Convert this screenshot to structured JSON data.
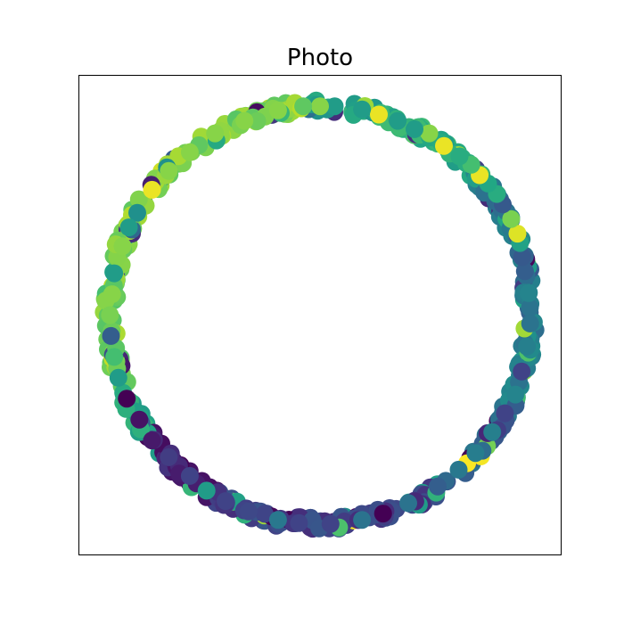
{
  "chart_data": {
    "type": "scatter",
    "title": "Photo",
    "xlabel": "",
    "ylabel": "",
    "xlim": [
      -1.15,
      1.15
    ],
    "ylim": [
      -1.15,
      1.15
    ],
    "axis_ticks": "none",
    "grid": false,
    "colormap": "viridis",
    "color_value_range": [
      0,
      1
    ],
    "radius_range": [
      0.97,
      1.03
    ],
    "bands": [
      {
        "angle_start": 0,
        "angle_end": 40,
        "color_value": 0.38
      },
      {
        "angle_start": 40,
        "angle_end": 75,
        "color_value": 0.62
      },
      {
        "angle_start": 75,
        "angle_end": 95,
        "color_value": 0.58
      },
      {
        "angle_start": 95,
        "angle_end": 165,
        "color_value": 0.82
      },
      {
        "angle_start": 165,
        "angle_end": 200,
        "color_value": 0.8
      },
      {
        "angle_start": 200,
        "angle_end": 215,
        "color_value": 0.6
      },
      {
        "angle_start": 215,
        "angle_end": 240,
        "color_value": 0.07
      },
      {
        "angle_start": 240,
        "angle_end": 305,
        "color_value": 0.2
      },
      {
        "angle_start": 305,
        "angle_end": 335,
        "color_value": 0.33
      },
      {
        "angle_start": 335,
        "angle_end": 360,
        "color_value": 0.43
      }
    ],
    "points": [
      [
        0.999,
        0.035,
        0.38
      ],
      [
        0.993,
        0.105,
        0.45
      ],
      [
        0.975,
        0.21,
        0.3
      ],
      [
        0.962,
        0.278,
        0.28
      ],
      [
        0.952,
        0.345,
        0.58
      ],
      [
        0.94,
        0.39,
        0.95
      ],
      [
        0.91,
        0.46,
        0.8
      ],
      [
        0.87,
        0.53,
        0.28
      ],
      [
        0.842,
        0.58,
        0.62
      ],
      [
        0.8,
        0.63,
        0.6
      ],
      [
        0.76,
        0.67,
        0.97
      ],
      [
        0.72,
        0.72,
        0.7
      ],
      [
        0.664,
        0.76,
        0.62
      ],
      [
        0.59,
        0.81,
        0.97
      ],
      [
        0.52,
        0.87,
        0.82
      ],
      [
        0.45,
        0.89,
        0.55
      ],
      [
        0.37,
        0.93,
        0.55
      ],
      [
        0.28,
        0.96,
        0.97
      ],
      [
        0.2,
        0.985,
        0.55
      ],
      [
        0.07,
        1.0,
        0.55
      ],
      [
        0.0,
        1.0,
        0.82
      ],
      [
        -0.08,
        1.0,
        0.75
      ],
      [
        -0.2,
        0.98,
        0.82
      ],
      [
        -0.36,
        0.93,
        0.82
      ],
      [
        -0.5,
        0.87,
        0.82
      ],
      [
        -0.62,
        0.78,
        0.82
      ],
      [
        -0.72,
        0.69,
        0.82
      ],
      [
        -0.8,
        0.6,
        0.97
      ],
      [
        -0.87,
        0.49,
        0.5
      ],
      [
        -0.91,
        0.42,
        0.55
      ],
      [
        -0.94,
        0.33,
        0.82
      ],
      [
        -0.98,
        0.2,
        0.55
      ],
      [
        -0.99,
        0.1,
        0.82
      ],
      [
        -1.0,
        0.0,
        0.8
      ],
      [
        -0.995,
        -0.1,
        0.3
      ],
      [
        -0.98,
        -0.2,
        0.7
      ],
      [
        -0.96,
        -0.3,
        0.55
      ],
      [
        -0.92,
        -0.4,
        0.0
      ],
      [
        -0.86,
        -0.5,
        0.05
      ],
      [
        -0.8,
        -0.6,
        0.07
      ],
      [
        -0.72,
        -0.68,
        0.18
      ],
      [
        -0.62,
        -0.77,
        0.2
      ],
      [
        -0.54,
        -0.84,
        0.55
      ],
      [
        -0.45,
        -0.89,
        0.2
      ],
      [
        -0.34,
        -0.94,
        0.22
      ],
      [
        -0.2,
        -0.98,
        0.4
      ],
      [
        -0.1,
        -0.995,
        0.2
      ],
      [
        0.05,
        -1.0,
        0.2
      ],
      [
        0.2,
        -0.98,
        0.38
      ],
      [
        0.3,
        -0.95,
        0.0
      ],
      [
        0.42,
        -0.9,
        0.38
      ],
      [
        0.56,
        -0.82,
        0.3
      ],
      [
        0.66,
        -0.74,
        0.4
      ],
      [
        0.74,
        -0.66,
        0.42
      ],
      [
        0.82,
        -0.56,
        0.43
      ],
      [
        0.88,
        -0.47,
        0.2
      ],
      [
        0.93,
        -0.38,
        0.45
      ],
      [
        0.96,
        -0.27,
        0.2
      ],
      [
        0.985,
        -0.15,
        0.43
      ],
      [
        1.0,
        -0.04,
        0.38
      ]
    ]
  }
}
